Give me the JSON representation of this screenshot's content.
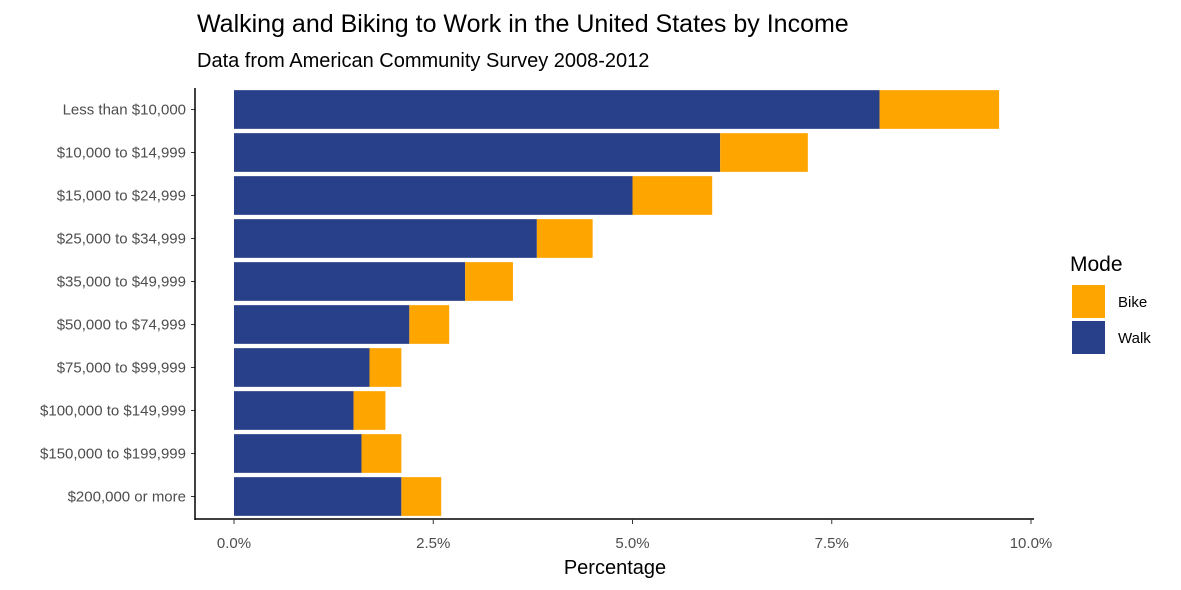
{
  "chart_data": {
    "type": "bar",
    "orientation": "horizontal",
    "stacked": true,
    "title": "Walking and Biking to Work in the United States by Income",
    "subtitle": "Data from American Community Survey 2008-2012",
    "xlabel": "Percentage",
    "ylabel": "",
    "xlim": [
      0,
      10
    ],
    "x_ticks": [
      0,
      2.5,
      5,
      7.5,
      10
    ],
    "x_tick_labels": [
      "0.0%",
      "2.5%",
      "5.0%",
      "7.5%",
      "10.0%"
    ],
    "grid": false,
    "categories": [
      "Less than $10,000",
      "$10,000 to $14,999",
      "$15,000 to $24,999",
      "$25,000 to $34,999",
      "$35,000 to $49,999",
      "$50,000 to $74,999",
      "$75,000 to $99,999",
      "$100,000 to $149,999",
      "$150,000 to $199,999",
      "$200,000 or more"
    ],
    "series": [
      {
        "name": "Walk",
        "color": "#283F89",
        "values": [
          8.1,
          6.1,
          5.0,
          3.8,
          2.9,
          2.2,
          1.7,
          1.5,
          1.6,
          2.1
        ]
      },
      {
        "name": "Bike",
        "color": "#FFA500",
        "values": [
          1.5,
          1.1,
          1.0,
          0.7,
          0.6,
          0.5,
          0.4,
          0.4,
          0.5,
          0.5
        ]
      }
    ],
    "legend": {
      "title": "Mode",
      "position": "right",
      "order": [
        "Bike",
        "Walk"
      ]
    }
  }
}
